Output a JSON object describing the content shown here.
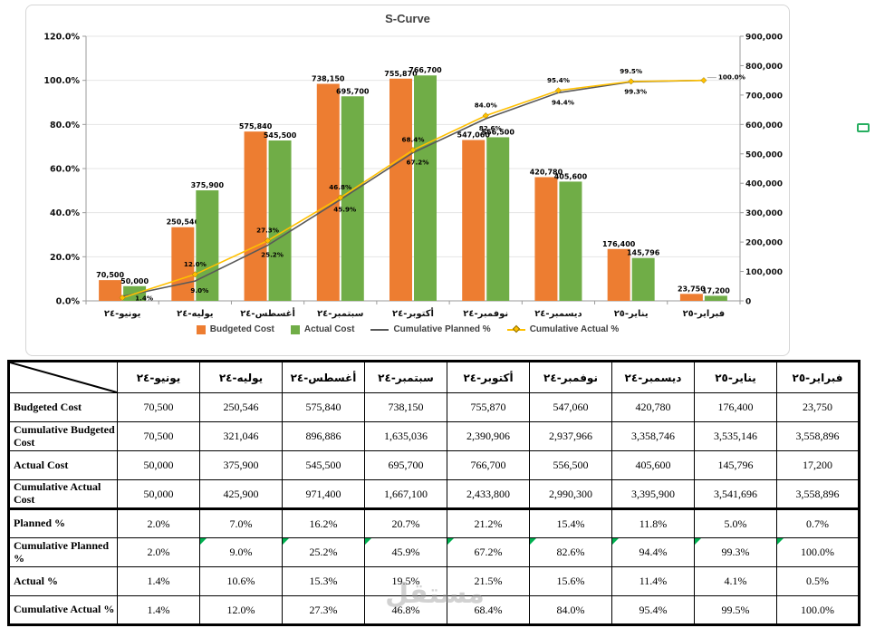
{
  "watermark": {
    "text": "مستقل"
  },
  "chart": {
    "title": "S-Curve",
    "left_axis": {
      "ticks": [
        "120.0%",
        "100.0%",
        "80.0%",
        "60.0%",
        "40.0%",
        "20.0%",
        "0.0%"
      ]
    },
    "right_axis": {
      "ticks": [
        "900,000",
        "800,000",
        "700,000",
        "600,000",
        "500,000",
        "400,000",
        "300,000",
        "200,000",
        "100,000",
        "0"
      ]
    },
    "legend": [
      {
        "label": "Budgeted Cost",
        "type": "bar",
        "color": "#ED7D31"
      },
      {
        "label": "Actual Cost",
        "type": "bar",
        "color": "#70AD47"
      },
      {
        "label": "Cumulative Planned %",
        "type": "line",
        "color": "#595959"
      },
      {
        "label": "Cumulative Actual %",
        "type": "line-marker",
        "color": "#FFC000"
      }
    ]
  },
  "chart_data": {
    "type": "combo",
    "title": "S-Curve",
    "categories": [
      "يونيو-٢٤",
      "يوليه-٢٤",
      "أغسطس-٢٤",
      "سبتمبر-٢٤",
      "أكتوبر-٢٤",
      "نوفمبر-٢٤",
      "ديسمبر-٢٤",
      "يناير-٢٥",
      "فبراير-٢٥"
    ],
    "left_ylim": [
      0,
      120
    ],
    "right_ylim": [
      0,
      900000
    ],
    "series": [
      {
        "name": "Budgeted Cost",
        "type": "bar",
        "axis": "right",
        "color": "#ED7D31",
        "values": [
          70500,
          250546,
          575840,
          738150,
          755870,
          547060,
          420780,
          176400,
          23750
        ],
        "labels": [
          "70,500",
          "250,546",
          "575,840",
          "738,150",
          "755,870",
          "547,060",
          "420,780",
          "176,400",
          "23,750"
        ]
      },
      {
        "name": "Actual Cost",
        "type": "bar",
        "axis": "right",
        "color": "#70AD47",
        "values": [
          50000,
          375900,
          545500,
          695700,
          766700,
          556500,
          405600,
          145796,
          17200
        ],
        "labels": [
          "50,000",
          "375,900",
          "545,500",
          "695,700",
          "766,700",
          "556,500",
          "405,600",
          "145,796",
          "17,200"
        ]
      },
      {
        "name": "Cumulative Planned %",
        "type": "line",
        "axis": "left",
        "color": "#595959",
        "values": [
          2.0,
          9.0,
          25.2,
          45.9,
          67.2,
          82.6,
          94.4,
          99.3,
          100.0
        ],
        "labels": [
          "",
          "9.0%",
          "25.2%",
          "45.9%",
          "67.2%",
          "82.6%",
          "94.4%",
          "99.3%",
          ""
        ]
      },
      {
        "name": "Cumulative Actual %",
        "type": "line",
        "axis": "left",
        "color": "#FFC000",
        "marker": "diamond",
        "values": [
          1.4,
          12.0,
          27.3,
          46.8,
          68.4,
          84.0,
          95.4,
          99.5,
          100.0
        ],
        "labels": [
          "1.4%",
          "12.0%",
          "27.3%",
          "46.8%",
          "68.4%",
          "84.0%",
          "95.4%",
          "99.5%",
          "100.0%"
        ]
      }
    ]
  },
  "table": {
    "col_headers": [
      "يونيو-٢٤",
      "يوليه-٢٤",
      "أغسطس-٢٤",
      "سبتمبر-٢٤",
      "أكتوبر-٢٤",
      "نوفمبر-٢٤",
      "ديسمبر-٢٤",
      "يناير-٢٥",
      "فبراير-٢٥"
    ],
    "rows": [
      {
        "label": "Budgeted Cost",
        "cells": [
          "70,500",
          "250,546",
          "575,840",
          "738,150",
          "755,870",
          "547,060",
          "420,780",
          "176,400",
          "23,750"
        ]
      },
      {
        "label": "Cumulative Budgeted Cost",
        "cells": [
          "70,500",
          "321,046",
          "896,886",
          "1,635,036",
          "2,390,906",
          "2,937,966",
          "3,358,746",
          "3,535,146",
          "3,558,896"
        ]
      },
      {
        "label": "Actual Cost",
        "cells": [
          "50,000",
          "375,900",
          "545,500",
          "695,700",
          "766,700",
          "556,500",
          "405,600",
          "145,796",
          "17,200"
        ]
      },
      {
        "label": "Cumulative Actual Cost",
        "cells": [
          "50,000",
          "425,900",
          "971,400",
          "1,667,100",
          "2,433,800",
          "2,990,300",
          "3,395,900",
          "3,541,696",
          "3,558,896"
        ]
      },
      {
        "label": "Planned %",
        "cells": [
          "2.0%",
          "7.0%",
          "16.2%",
          "20.7%",
          "21.2%",
          "15.4%",
          "11.8%",
          "5.0%",
          "0.7%"
        ]
      },
      {
        "label": "Cumulative Planned %",
        "cells": [
          "2.0%",
          "9.0%",
          "25.2%",
          "45.9%",
          "67.2%",
          "82.6%",
          "94.4%",
          "99.3%",
          "100.0%"
        ],
        "flags": [
          false,
          true,
          true,
          true,
          true,
          true,
          true,
          true,
          true
        ]
      },
      {
        "label": "Actual %",
        "cells": [
          "1.4%",
          "10.6%",
          "15.3%",
          "19.5%",
          "21.5%",
          "15.6%",
          "11.4%",
          "4.1%",
          "0.5%"
        ]
      },
      {
        "label": "Cumulative Actual %",
        "cells": [
          "1.4%",
          "12.0%",
          "27.3%",
          "46.8%",
          "68.4%",
          "84.0%",
          "95.4%",
          "99.5%",
          "100.0%"
        ]
      }
    ]
  }
}
